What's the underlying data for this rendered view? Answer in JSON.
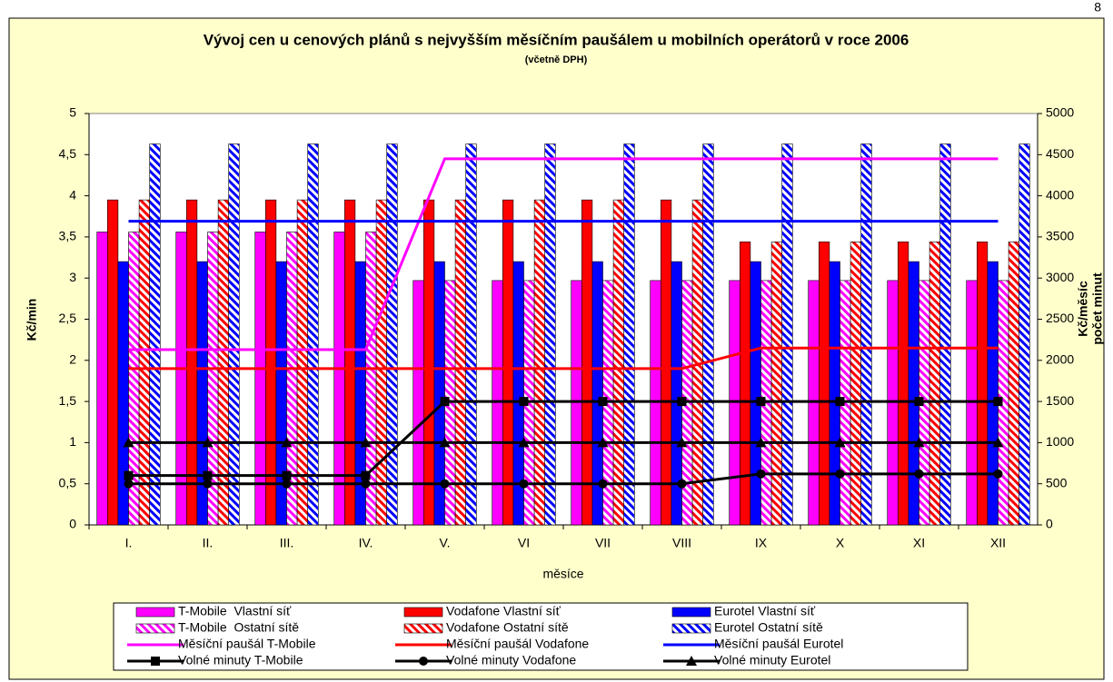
{
  "page_number": "8",
  "chart_data": {
    "type": "bar",
    "title": "Vývoj cen u cenových plánů s nejvyšším měsíčním paušálem u mobilních operátorů v roce 2006",
    "subtitle": "(včetně DPH)",
    "x_label": "měsíce",
    "y_label": "Kč/min",
    "y2_label": [
      "Kč/měsíc",
      "počet minut"
    ],
    "categories": [
      "I.",
      "II.",
      "III.",
      "IV.",
      "V.",
      "VI",
      "VII",
      "VIII",
      "IX",
      "X",
      "XI",
      "XII"
    ],
    "ylim": [
      0,
      5
    ],
    "yticks": [
      0,
      {
        "value": 0.5,
        "label": "0,5"
      },
      1,
      {
        "value": 1.5,
        "label": "1,5"
      },
      2,
      {
        "value": 2.5,
        "label": "2,5"
      },
      3,
      {
        "value": 3.5,
        "label": "3,5"
      },
      4,
      {
        "value": 4.5,
        "label": "4,5"
      },
      5
    ],
    "y2lim": [
      0,
      5000
    ],
    "y2ticks": [
      0,
      500,
      1000,
      1500,
      2000,
      2500,
      3000,
      3500,
      4000,
      4500,
      5000
    ],
    "grid": false,
    "series": [
      {
        "name": "T-Mobile  Vlastní síť",
        "type": "bar",
        "color": "#ff00ff",
        "values": [
          3.56,
          3.56,
          3.56,
          3.56,
          2.97,
          2.97,
          2.97,
          2.97,
          2.97,
          2.97,
          2.97,
          2.97
        ]
      },
      {
        "name": "Vodafone Vlastní síť",
        "type": "bar",
        "color": "#ff0000",
        "values": [
          3.95,
          3.95,
          3.95,
          3.95,
          3.95,
          3.95,
          3.95,
          3.95,
          3.44,
          3.44,
          3.44,
          3.44
        ]
      },
      {
        "name": "Eurotel Vlastní síť",
        "type": "bar",
        "color": "#0000ff",
        "values": [
          3.2,
          3.2,
          3.2,
          3.2,
          3.2,
          3.2,
          3.2,
          3.2,
          3.2,
          3.2,
          3.2,
          3.2
        ]
      },
      {
        "name": "T-Mobile  Ostatní sítě",
        "type": "bar",
        "color": "#ff00ff",
        "pattern": "hatched",
        "values": [
          3.56,
          3.56,
          3.56,
          3.56,
          2.97,
          2.97,
          2.97,
          2.97,
          2.97,
          2.97,
          2.97,
          2.97
        ]
      },
      {
        "name": "Vodafone Ostatní sítě",
        "type": "bar",
        "color": "#ff0000",
        "pattern": "hatched",
        "values": [
          3.95,
          3.95,
          3.95,
          3.95,
          3.95,
          3.95,
          3.95,
          3.95,
          3.44,
          3.44,
          3.44,
          3.44
        ]
      },
      {
        "name": "Eurotel Ostatní sítě",
        "type": "bar",
        "color": "#0000ff",
        "pattern": "hatched",
        "values": [
          4.63,
          4.63,
          4.63,
          4.63,
          4.63,
          4.63,
          4.63,
          4.63,
          4.63,
          4.63,
          4.63,
          4.63
        ]
      },
      {
        "name": "Měsíční paušál T-Mobile",
        "type": "line",
        "axis": "y2",
        "color": "#ff00ff",
        "values": [
          2130,
          2130,
          2130,
          2130,
          4450,
          4450,
          4450,
          4450,
          4450,
          4450,
          4450,
          4450
        ]
      },
      {
        "name": "Měsíční paušál Vodafone",
        "type": "line",
        "axis": "y2",
        "color": "#ff0000",
        "values": [
          1900,
          1900,
          1900,
          1900,
          1900,
          1900,
          1900,
          1900,
          2150,
          2150,
          2150,
          2150
        ]
      },
      {
        "name": "Měsíční paušál Eurotel",
        "type": "line",
        "axis": "y2",
        "color": "#0000ff",
        "values": [
          3690,
          3690,
          3690,
          3690,
          3690,
          3690,
          3690,
          3690,
          3690,
          3690,
          3690,
          3690
        ]
      },
      {
        "name": "Volné minuty T-Mobile",
        "type": "line",
        "axis": "y2",
        "color": "#000000",
        "marker": "square",
        "values": [
          600,
          600,
          600,
          600,
          1500,
          1500,
          1500,
          1500,
          1500,
          1500,
          1500,
          1500
        ]
      },
      {
        "name": "Volné minuty Vodafone",
        "type": "line",
        "axis": "y2",
        "color": "#000000",
        "marker": "circle",
        "values": [
          500,
          500,
          500,
          500,
          500,
          500,
          500,
          500,
          620,
          620,
          620,
          620
        ]
      },
      {
        "name": "Volné minuty Eurotel",
        "type": "line",
        "axis": "y2",
        "color": "#000000",
        "marker": "triangle",
        "values": [
          1000,
          1000,
          1000,
          1000,
          1000,
          1000,
          1000,
          1000,
          1000,
          1000,
          1000,
          1000
        ]
      }
    ],
    "legend": {
      "columns": 3,
      "position": "bottom"
    }
  }
}
